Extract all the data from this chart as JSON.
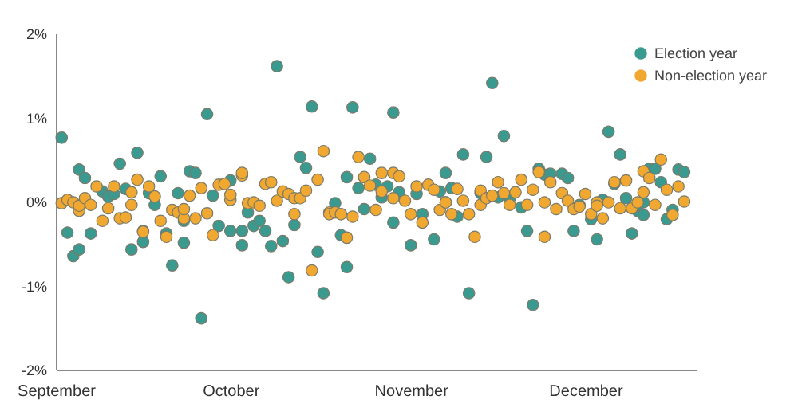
{
  "chart_data": {
    "type": "scatter",
    "marker": "circle",
    "grid": false,
    "legend": "top right",
    "xlim": [
      "--09-01",
      "--12-20"
    ],
    "xticks": [
      {
        "value": "--09-01",
        "label": "September"
      },
      {
        "value": "--10-01",
        "label": "October"
      },
      {
        "value": "--11-01",
        "label": "November"
      },
      {
        "value": "--12-01",
        "label": "December"
      }
    ],
    "ylim": [
      -2,
      2
    ],
    "yticks": [
      {
        "value": -2,
        "label": "-2%"
      },
      {
        "value": -1,
        "label": "-1%"
      },
      {
        "value": 0,
        "label": "0%"
      },
      {
        "value": 1,
        "label": "1%"
      },
      {
        "value": 2,
        "label": "2%"
      }
    ],
    "series": [
      {
        "name": "Election year",
        "color": "#3a9a8f",
        "x": [
          "--09-02",
          "--09-03",
          "--09-04",
          "--09-05",
          "--09-05",
          "--09-06",
          "--09-07",
          "--09-09",
          "--09-10",
          "--09-11",
          "--09-12",
          "--09-13",
          "--09-14",
          "--09-15",
          "--09-16",
          "--09-16",
          "--09-17",
          "--09-18",
          "--09-19",
          "--09-20",
          "--09-21",
          "--09-22",
          "--09-23",
          "--09-23",
          "--09-24",
          "--09-25",
          "--09-26",
          "--09-27",
          "--09-28",
          "--09-29",
          "--10-01",
          "--10-01",
          "--10-03",
          "--10-03",
          "--10-04",
          "--10-05",
          "--10-06",
          "--10-07",
          "--10-08",
          "--10-09",
          "--10-10",
          "--10-11",
          "--10-12",
          "--10-13",
          "--10-14",
          "--10-15",
          "--10-16",
          "--10-17",
          "--10-19",
          "--10-20",
          "--10-21",
          "--10-21",
          "--10-22",
          "--10-23",
          "--10-24",
          "--10-25",
          "--10-26",
          "--10-27",
          "--10-28",
          "--10-29",
          "--10-29",
          "--10-30",
          "--11-01",
          "--11-02",
          "--11-03",
          "--11-05",
          "--11-06",
          "--11-07",
          "--11-08",
          "--11-09",
          "--11-10",
          "--11-11",
          "--11-13",
          "--11-14",
          "--11-15",
          "--11-16",
          "--11-17",
          "--11-18",
          "--11-20",
          "--11-21",
          "--11-22",
          "--11-23",
          "--11-24",
          "--11-25",
          "--11-27",
          "--11-28",
          "--11-29",
          "--11-30",
          "--12-02",
          "--12-03",
          "--12-04",
          "--12-05",
          "--12-06",
          "--12-07",
          "--12-08",
          "--12-09",
          "--12-10",
          "--12-11",
          "--12-11",
          "--12-12",
          "--12-13",
          "--12-14",
          "--12-15",
          "--12-16",
          "--12-17",
          "--12-18"
        ],
        "values": [
          0.76,
          -0.37,
          -0.65,
          -0.57,
          0.38,
          0.28,
          -0.38,
          0.12,
          0.06,
          0.09,
          0.45,
          0.15,
          -0.57,
          0.58,
          -0.35,
          -0.48,
          0.1,
          -0.04,
          0.3,
          -0.38,
          -0.76,
          0.1,
          -0.23,
          -0.49,
          0.36,
          0.34,
          -1.39,
          1.04,
          0.07,
          -0.29,
          0.25,
          -0.35,
          -0.35,
          -0.52,
          -0.13,
          -0.29,
          -0.23,
          -0.35,
          -0.53,
          1.61,
          -0.47,
          -0.9,
          -0.28,
          0.53,
          0.4,
          1.13,
          -0.6,
          -1.09,
          -0.02,
          -0.4,
          0.29,
          -0.78,
          1.12,
          0.16,
          -0.09,
          0.51,
          0.2,
          0.05,
          0.18,
          1.06,
          -0.25,
          0.11,
          -0.52,
          0.09,
          -0.15,
          -0.45,
          0.12,
          0.34,
          0.16,
          -0.18,
          0.56,
          -1.09,
          0.1,
          0.53,
          1.41,
          0.05,
          0.78,
          0.04,
          -0.07,
          -0.35,
          -1.23,
          0.39,
          0.32,
          0.33,
          0.33,
          0.28,
          -0.35,
          -0.04,
          -0.21,
          -0.45,
          0.02,
          0.83,
          0.21,
          0.56,
          0.04,
          -0.38,
          -0.11,
          -0.01,
          -0.16,
          0.39,
          0.39,
          0.23,
          -0.21,
          -0.1,
          0.38,
          0.35
        ]
      },
      {
        "name": "Non-election year",
        "color": "#f0a830",
        "x": [
          "--09-02",
          "--09-03",
          "--09-04",
          "--09-05",
          "--09-05",
          "--09-06",
          "--09-07",
          "--09-08",
          "--09-09",
          "--09-10",
          "--09-11",
          "--09-12",
          "--09-13",
          "--09-14",
          "--09-14",
          "--09-15",
          "--09-16",
          "--09-17",
          "--09-18",
          "--09-19",
          "--09-20",
          "--09-21",
          "--09-22",
          "--09-23",
          "--09-23",
          "--09-24",
          "--09-25",
          "--09-26",
          "--09-27",
          "--09-28",
          "--09-29",
          "--09-30",
          "--10-01",
          "--10-01",
          "--10-03",
          "--10-03",
          "--10-04",
          "--10-05",
          "--10-06",
          "--10-07",
          "--10-08",
          "--10-09",
          "--10-10",
          "--10-11",
          "--10-12",
          "--10-12",
          "--10-13",
          "--10-14",
          "--10-15",
          "--10-16",
          "--10-17",
          "--10-18",
          "--10-18",
          "--10-19",
          "--10-20",
          "--10-21",
          "--10-22",
          "--10-23",
          "--10-24",
          "--10-25",
          "--10-26",
          "--10-27",
          "--10-27",
          "--10-29",
          "--10-29",
          "--10-30",
          "--10-31",
          "--11-01",
          "--11-02",
          "--11-03",
          "--11-04",
          "--11-05",
          "--11-06",
          "--11-07",
          "--11-07",
          "--11-08",
          "--11-09",
          "--11-10",
          "--11-11",
          "--11-12",
          "--11-13",
          "--11-13",
          "--11-14",
          "--11-15",
          "--11-16",
          "--11-17",
          "--11-18",
          "--11-19",
          "--11-20",
          "--11-21",
          "--11-22",
          "--11-23",
          "--11-24",
          "--11-24",
          "--11-25",
          "--11-26",
          "--11-27",
          "--11-28",
          "--11-29",
          "--11-30",
          "--12-01",
          "--12-02",
          "--12-03",
          "--12-03",
          "--12-04",
          "--12-05",
          "--12-06",
          "--12-07",
          "--12-08",
          "--12-09",
          "--12-10",
          "--12-11",
          "--12-11",
          "--12-12",
          "--12-13",
          "--12-14",
          "--12-15",
          "--12-16",
          "--12-17",
          "--12-18"
        ],
        "values": [
          -0.02,
          0.02,
          -0.01,
          -0.11,
          -0.05,
          0.04,
          -0.04,
          0.18,
          -0.23,
          -0.08,
          0.18,
          -0.2,
          -0.19,
          0.11,
          -0.04,
          0.26,
          -0.36,
          0.18,
          0.06,
          -0.23,
          -0.42,
          -0.1,
          -0.13,
          -0.2,
          -0.09,
          0.07,
          -0.2,
          0.16,
          -0.14,
          -0.4,
          0.2,
          0.21,
          0.02,
          0.08,
          0.31,
          0.34,
          -0.02,
          -0.01,
          -0.05,
          0.21,
          0.23,
          0.01,
          0.12,
          0.09,
          0.04,
          -0.15,
          0.04,
          0.13,
          -0.82,
          0.26,
          0.6,
          -0.13,
          -0.15,
          -0.13,
          -0.15,
          -0.43,
          -0.18,
          0.53,
          0.29,
          0.19,
          -0.1,
          0.12,
          0.34,
          0.34,
          0.04,
          0.3,
          0.01,
          -0.15,
          0.18,
          -0.25,
          0.2,
          0.14,
          -0.1,
          -0.01,
          -0.01,
          -0.15,
          0.15,
          0.01,
          -0.15,
          -0.42,
          -0.04,
          0.13,
          0.04,
          0.07,
          0.23,
          0.1,
          -0.04,
          0.11,
          0.26,
          -0.04,
          0.14,
          0.35,
          -0.01,
          -0.42,
          0.23,
          -0.09,
          0.1,
          0.01,
          -0.09,
          -0.06,
          0.09,
          -0.15,
          -0.01,
          -0.05,
          -0.2,
          -0.01,
          0.23,
          -0.08,
          0.25,
          -0.08,
          -0.01,
          0.36,
          0.11,
          0.28,
          -0.04,
          0.5,
          0.14,
          -0.16,
          0.18,
          0.0
        ]
      }
    ]
  }
}
